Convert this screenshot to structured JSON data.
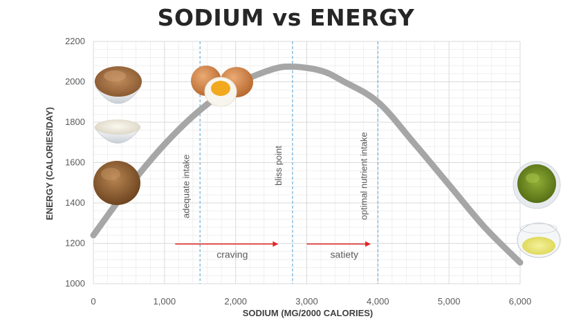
{
  "chart_data": {
    "type": "line",
    "title": "SODIUM vs ENERGY",
    "xlabel": "SODIUM (MG/2000 CALORIES)",
    "ylabel": "ENERGY (CALORIES/DAY)",
    "xlim": [
      0,
      6000
    ],
    "ylim": [
      1000,
      2200
    ],
    "x_ticks": [
      0,
      1000,
      2000,
      3000,
      4000,
      5000,
      6000
    ],
    "x_tick_labels": [
      "0",
      "1,000",
      "2,000",
      "3,000",
      "4,000",
      "5,000",
      "6,000"
    ],
    "y_ticks": [
      1000,
      1200,
      1400,
      1600,
      1800,
      2000,
      2200
    ],
    "y_tick_labels": [
      "1000",
      "1200",
      "1400",
      "1600",
      "1800",
      "2000",
      "2200"
    ],
    "grid": true,
    "series": [
      {
        "name": "energy",
        "color": "#a6a6a6",
        "x": [
          0,
          500,
          1000,
          1500,
          2000,
          2500,
          2800,
          3200,
          3500,
          4000,
          4500,
          5000,
          5500,
          6000
        ],
        "y": [
          1240,
          1480,
          1690,
          1860,
          1985,
          2060,
          2075,
          2055,
          2005,
          1900,
          1700,
          1490,
          1280,
          1105
        ]
      }
    ],
    "reference_lines": [
      {
        "x": 1500,
        "label": "adequate intake"
      },
      {
        "x": 2800,
        "label": "bliss point"
      },
      {
        "x": 4000,
        "label": "optimal nutrient intake"
      }
    ],
    "arrows": [
      {
        "from": 1150,
        "to": 2600,
        "y": 1200,
        "label": "craving"
      },
      {
        "from": 3000,
        "to": 3900,
        "y": 1200,
        "label": "satiety"
      }
    ],
    "colors": {
      "curve": "#a6a6a6",
      "reference_line": "#7fb8e0",
      "arrow": "#e32626",
      "grid": "#e6e6e6",
      "title": "#262626"
    }
  },
  "images": [
    {
      "name": "brown-rice-bowl-image",
      "description": "bowl of brown rice"
    },
    {
      "name": "white-rice-bowl-image",
      "description": "bowl of white rice"
    },
    {
      "name": "buckwheat-image",
      "description": "pile of buckwheat"
    },
    {
      "name": "eggs-image",
      "description": "boiled eggs"
    },
    {
      "name": "guacamole-bowl-image",
      "description": "bowl of guacamole"
    },
    {
      "name": "oil-bowl-image",
      "description": "glass bowl of oil"
    }
  ]
}
